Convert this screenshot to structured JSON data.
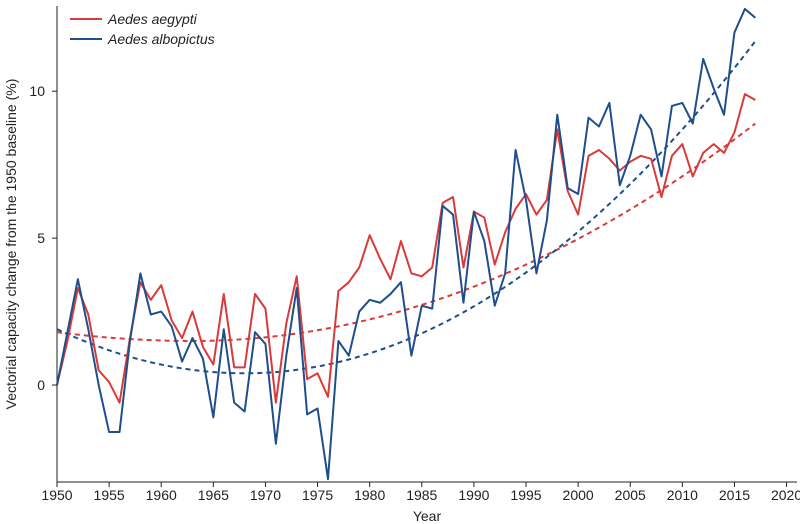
{
  "chart_data": {
    "type": "line",
    "xlabel": "Year",
    "ylabel": "Vectorial capacity change from the 1950 baseline (%)",
    "xlim": [
      1950,
      2021
    ],
    "ylim": [
      -3.3,
      12.9
    ],
    "xticks": [
      1950,
      1955,
      1960,
      1965,
      1970,
      1975,
      1980,
      1985,
      1990,
      1995,
      2000,
      2005,
      2010,
      2015,
      2020
    ],
    "yticks": [
      0,
      5,
      10
    ],
    "legend_position": "top-left",
    "x": [
      1950,
      1951,
      1952,
      1953,
      1954,
      1955,
      1956,
      1957,
      1958,
      1959,
      1960,
      1961,
      1962,
      1963,
      1964,
      1965,
      1966,
      1967,
      1968,
      1969,
      1970,
      1971,
      1972,
      1973,
      1974,
      1975,
      1976,
      1977,
      1978,
      1979,
      1980,
      1981,
      1982,
      1983,
      1984,
      1985,
      1986,
      1987,
      1988,
      1989,
      1990,
      1991,
      1992,
      1993,
      1994,
      1995,
      1996,
      1997,
      1998,
      1999,
      2000,
      2001,
      2002,
      2003,
      2004,
      2005,
      2006,
      2007,
      2008,
      2009,
      2010,
      2011,
      2012,
      2013,
      2014,
      2015,
      2016,
      2017
    ],
    "series": [
      {
        "name": "Aedes aegypti",
        "color": "#d93a3a",
        "values": [
          0.0,
          1.5,
          3.3,
          2.4,
          0.5,
          0.1,
          -0.6,
          1.6,
          3.5,
          2.9,
          3.4,
          2.2,
          1.6,
          2.5,
          1.3,
          0.7,
          3.1,
          0.6,
          0.6,
          3.1,
          2.6,
          -0.6,
          2.1,
          3.7,
          0.2,
          0.4,
          -0.4,
          3.2,
          3.5,
          4.0,
          5.1,
          4.3,
          3.6,
          4.9,
          3.8,
          3.7,
          4.0,
          6.2,
          6.4,
          4.0,
          5.9,
          5.7,
          4.1,
          5.2,
          6.0,
          6.5,
          5.8,
          6.3,
          8.7,
          6.6,
          5.8,
          7.8,
          8.0,
          7.7,
          7.3,
          7.6,
          7.8,
          7.7,
          6.4,
          7.8,
          8.2,
          7.1,
          7.9,
          8.2,
          7.9,
          8.6,
          9.9,
          9.7
        ],
        "trend": {
          "start": 1.8,
          "min_year": 1963,
          "min": 1.5,
          "end": 8.9
        }
      },
      {
        "name": "Aedes albopictus",
        "color": "#1f4e8c",
        "values": [
          0.0,
          1.8,
          3.6,
          1.9,
          0.0,
          -1.6,
          -1.6,
          1.5,
          3.8,
          2.4,
          2.5,
          2.0,
          0.8,
          1.6,
          0.9,
          -1.1,
          1.9,
          -0.6,
          -0.9,
          1.8,
          1.4,
          -2.0,
          1.0,
          3.3,
          -1.0,
          -0.8,
          -3.2,
          1.5,
          1.0,
          2.5,
          2.9,
          2.8,
          3.1,
          3.5,
          1.0,
          2.7,
          2.6,
          6.1,
          5.8,
          2.8,
          5.9,
          4.9,
          2.7,
          3.8,
          8.0,
          6.3,
          3.8,
          5.6,
          9.2,
          6.7,
          6.5,
          9.1,
          8.8,
          9.6,
          6.8,
          7.8,
          9.2,
          8.7,
          7.1,
          9.5,
          9.6,
          8.9,
          11.1,
          10.1,
          9.2,
          12.0,
          12.8,
          12.5
        ],
        "trend": {
          "start": 1.9,
          "min_year": 1968,
          "min": 0.4,
          "end": 11.7
        }
      }
    ]
  }
}
